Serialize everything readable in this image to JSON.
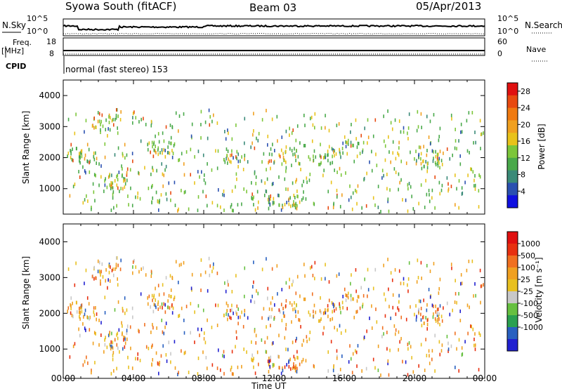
{
  "header": {
    "title": "Syowa South (fitACF)",
    "beam": "Beam 03",
    "date": "05/Apr/2013"
  },
  "top_panels": {
    "nsky_label": "N.Sky",
    "nsky_ticks": [
      "10^5",
      "10^0"
    ],
    "nsearch_label": "N.Search",
    "nsearch_ticks": [
      "10^5",
      "10^0"
    ],
    "freq_label": "Freq.",
    "freq_unit": "[MHz]",
    "freq_ticks": [
      "18",
      "8"
    ],
    "nave_label": "Nave",
    "nave_ticks": [
      "60",
      "0"
    ],
    "cpid_label": "CPID",
    "cpid_text": "normal (fast stereo) 153"
  },
  "colors": {
    "power_scale": [
      "#1010e0",
      "#2a50b0",
      "#3a8a78",
      "#49a94a",
      "#7cc63a",
      "#e8c21a",
      "#f0a020",
      "#f07a10",
      "#e84a10",
      "#e01010"
    ],
    "velocity_scale": [
      "#2020d0",
      "#2860c0",
      "#2aa050",
      "#66c040",
      "#c8c8c8",
      "#e8c020",
      "#f0a020",
      "#f07020",
      "#e83010",
      "#e01010"
    ]
  },
  "chart_data": [
    {
      "type": "heatmap",
      "name": "power",
      "ylabel": "Slant Range [km]",
      "ylim": [
        180,
        4500
      ],
      "yticks": [
        "1000",
        "2000",
        "3000",
        "4000"
      ],
      "xlim": [
        0,
        24
      ],
      "colorbar_label": "Power [dB]",
      "colorbar_ticks": [
        "4",
        "8",
        "12",
        "16",
        "20",
        "24",
        "28"
      ],
      "clim": [
        0,
        30
      ],
      "grid": false
    },
    {
      "type": "heatmap",
      "name": "velocity",
      "ylabel": "Slant Range [km]",
      "xlabel": "Time UT",
      "ylim": [
        180,
        4500
      ],
      "yticks": [
        "1000",
        "2000",
        "3000",
        "4000"
      ],
      "xlim": [
        0,
        24
      ],
      "xticks": [
        "00:00",
        "04:00",
        "08:00",
        "12:00",
        "16:00",
        "20:00",
        "00:00"
      ],
      "colorbar_label": "Velocity [m s⁻¹]",
      "colorbar_ticks": [
        "1000",
        "500",
        "100",
        "25",
        "-25",
        "-100",
        "-500",
        "-1000"
      ],
      "grid": false
    }
  ]
}
